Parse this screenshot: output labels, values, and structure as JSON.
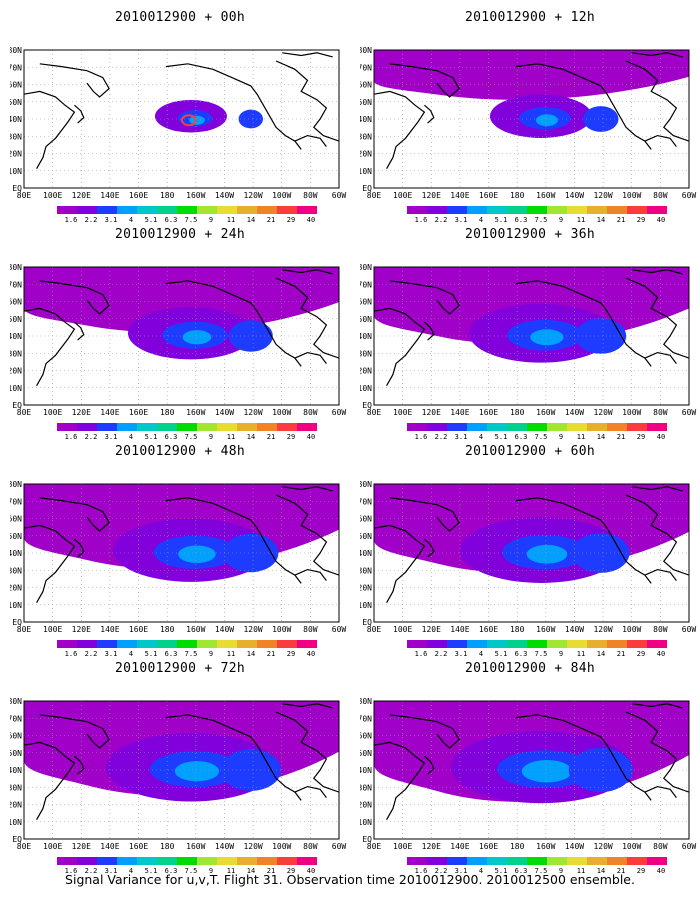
{
  "footer": "Signal Variance for u,v,T. Flight 31. Observation time 2010012900. 2010012500 ensemble.",
  "lon_labels": [
    "80E",
    "100E",
    "120E",
    "140E",
    "160E",
    "180",
    "160W",
    "140W",
    "120W",
    "100W",
    "80W",
    "60W"
  ],
  "lat_labels": [
    "80N",
    "70N",
    "60N",
    "50N",
    "40N",
    "30N",
    "20N",
    "10N",
    "EQ"
  ],
  "colorbar": {
    "labels": [
      "1.6",
      "2.2",
      "3.1",
      "4",
      "5.1",
      "6.3",
      "7.5",
      "9",
      "11",
      "14",
      "21",
      "29",
      "40"
    ],
    "colors": [
      "#a000c8",
      "#8200dc",
      "#1e3cff",
      "#00a0ff",
      "#00c8c8",
      "#00d28c",
      "#00dc00",
      "#a0e632",
      "#e6dc32",
      "#e6af2d",
      "#f08228",
      "#fa3c3c",
      "#f00082"
    ]
  },
  "panels": [
    {
      "title": "2010012900 + 00h",
      "spread": 0.1,
      "intensity": 1.1
    },
    {
      "title": "2010012900 + 12h",
      "spread": 0.35,
      "intensity": 0.9
    },
    {
      "title": "2010012900 + 24h",
      "spread": 0.55,
      "intensity": 0.95
    },
    {
      "title": "2010012900 + 36h",
      "spread": 0.7,
      "intensity": 0.95
    },
    {
      "title": "2010012900 + 48h",
      "spread": 0.8,
      "intensity": 1.0
    },
    {
      "title": "2010012900 + 60h",
      "spread": 0.85,
      "intensity": 1.05
    },
    {
      "title": "2010012900 + 72h",
      "spread": 0.92,
      "intensity": 1.1
    },
    {
      "title": "2010012900 + 84h",
      "spread": 1.0,
      "intensity": 1.2
    }
  ]
}
